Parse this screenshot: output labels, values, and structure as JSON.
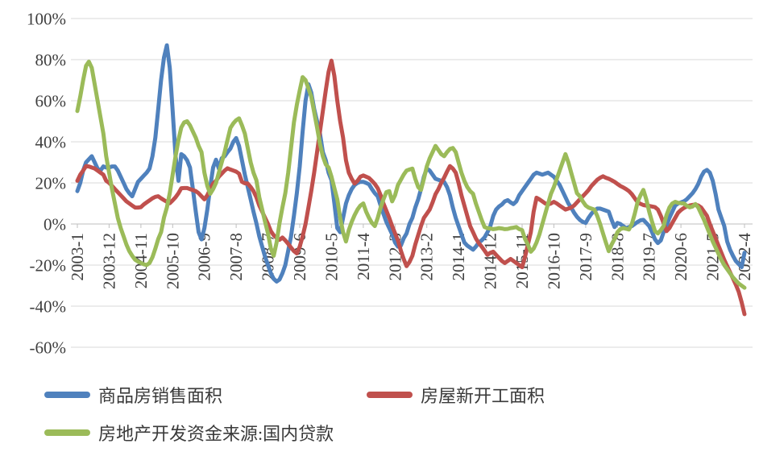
{
  "page": {
    "background": "#ffffff"
  },
  "chart_data": {
    "type": "line",
    "title": "",
    "legend_position": "bottom-left",
    "grid": {
      "show": true,
      "color": "#d9d9d9",
      "axis_color": "#bfbfbf",
      "label_color": "#3f3f3f"
    },
    "x": {
      "unit": "month",
      "start": "2003-1",
      "end": "2022-4",
      "tick_interval_months": 11,
      "tick_labels": [
        "2003-1",
        "2003-12",
        "2004-11",
        "2005-10",
        "2006-9",
        "2007-8",
        "2008-7",
        "2009-6",
        "2010-5",
        "2011-4",
        "2012-3",
        "2013-2",
        "2014-1",
        "2014-12",
        "2015-11",
        "2016-10",
        "2017-9",
        "2018-8",
        "2019-7",
        "2020-6",
        "2021-5",
        "2022-4"
      ]
    },
    "y": {
      "min": -60,
      "max": 100,
      "step": 20,
      "tick_values": [
        100,
        80,
        60,
        40,
        20,
        0,
        -20,
        -40,
        -60
      ],
      "tick_labels": [
        "100%",
        "80%",
        "60%",
        "40%",
        "20%",
        "0%",
        "-20%",
        "-40%",
        "-60%"
      ]
    },
    "series": [
      {
        "name": "商品房销售面积",
        "color": "#4F81BD",
        "values": [
          16,
          20,
          26,
          30,
          31.5,
          33,
          30,
          27,
          26,
          28,
          27.5,
          27.5,
          28,
          28,
          26,
          23,
          20,
          17,
          15,
          13.5,
          17,
          20.5,
          22,
          23.5,
          25,
          27,
          33,
          42,
          56,
          70,
          81,
          87,
          76,
          55,
          33,
          21,
          34,
          33,
          31,
          27.5,
          17,
          6,
          -4,
          -7.5,
          -2,
          7,
          18,
          27.5,
          31.3,
          27,
          32,
          33,
          35,
          36.7,
          40,
          41.8,
          38,
          31,
          24,
          18,
          12,
          6,
          0.4,
          -6,
          -11,
          -16,
          -20,
          -24,
          -26.7,
          -28,
          -27,
          -24,
          -20,
          -13,
          -6,
          4,
          15,
          28,
          45,
          60,
          68,
          64,
          56,
          50,
          44,
          35,
          31,
          25,
          21.3,
          10,
          -2,
          -4,
          3,
          10,
          14,
          17,
          19,
          20,
          20.5,
          20.5,
          20,
          19.3,
          17,
          15,
          13.5,
          9,
          5,
          1,
          -2,
          -5,
          -9,
          -11,
          -10.5,
          -7,
          -4.6,
          0,
          3,
          8,
          12,
          17,
          23,
          27,
          26,
          24,
          22,
          21.5,
          21,
          20.5,
          18,
          14,
          8,
          3,
          -1,
          -5,
          -9,
          -10.5,
          -11.5,
          -12.5,
          -11,
          -9,
          -8,
          -6.5,
          -4,
          -1,
          4,
          7,
          8.5,
          9.5,
          11,
          11.6,
          10.5,
          9.7,
          11,
          14,
          16,
          18,
          20,
          22,
          24,
          25,
          24.5,
          24,
          24.5,
          25,
          24,
          23,
          21,
          19,
          16,
          13,
          10,
          8,
          5.5,
          3.5,
          2,
          1,
          0.5,
          3,
          5,
          6.5,
          7.5,
          7.5,
          7,
          6.5,
          6,
          2,
          -1.5,
          0.5,
          0,
          -1,
          -2,
          -1.5,
          -1,
          0,
          1,
          1.8,
          2,
          0.5,
          -1,
          -4,
          -7.5,
          -9.3,
          -8,
          -4,
          -1,
          3,
          6,
          9,
          10,
          10.5,
          11,
          12,
          13.5,
          15,
          17,
          19.5,
          23,
          25.5,
          26.3,
          25,
          21,
          14.5,
          7,
          3,
          -1,
          -8.5,
          -12.5,
          -15.5,
          -18,
          -19.5,
          -21,
          -14
        ]
      },
      {
        "name": "房屋新开工面积",
        "color": "#C0504D",
        "values": [
          21,
          24,
          26,
          28.2,
          28,
          27.5,
          27,
          26,
          25,
          24,
          21,
          20,
          18.6,
          17,
          15.5,
          14,
          12.5,
          11,
          10,
          9,
          8,
          8,
          8.2,
          9.5,
          10.5,
          11.5,
          12.5,
          13.2,
          13.5,
          12.5,
          11.6,
          10.8,
          10.1,
          11.5,
          13,
          15,
          17.4,
          17.5,
          17.5,
          17,
          16.5,
          16,
          15,
          13.5,
          12,
          14,
          17,
          19.7,
          21,
          23,
          24.5,
          26,
          27.1,
          26.5,
          26,
          25.5,
          24.5,
          20.5,
          19.8,
          19.7,
          18,
          16,
          13,
          9,
          6,
          3,
          0,
          -3.5,
          -5.5,
          -6.8,
          -7.7,
          -6.6,
          -8,
          -9.7,
          -11.5,
          -13.2,
          -14.3,
          -11,
          -6,
          0,
          8,
          16,
          25,
          35,
          45,
          55,
          65,
          74,
          79.5,
          72,
          60,
          50,
          42,
          31,
          25,
          22,
          19.7,
          21,
          23,
          23.6,
          23,
          22.4,
          21,
          19.5,
          17.4,
          14,
          10,
          6.5,
          3,
          -1,
          -4.6,
          -8,
          -13,
          -17,
          -20.5,
          -18.5,
          -15.5,
          -10,
          -5.4,
          -1,
          3,
          5,
          7,
          10.5,
          14.5,
          17,
          20,
          22.5,
          25.5,
          28.2,
          27,
          25,
          20,
          14,
          9,
          4,
          -1,
          -4,
          -7,
          -9.3,
          -11,
          -13,
          -15,
          -14,
          -13.5,
          -15,
          -16.5,
          -18,
          -19,
          -18,
          -17,
          -18,
          -19,
          -20,
          -21,
          -16,
          -10,
          -4,
          6,
          12.8,
          12,
          11,
          10,
          9.5,
          10,
          10.8,
          10,
          9,
          8,
          7,
          7.5,
          8,
          9,
          10.5,
          12,
          13.5,
          15,
          16.5,
          18.5,
          20,
          21.5,
          22.5,
          23.2,
          22.5,
          22,
          21.3,
          20.5,
          19.5,
          18.5,
          17.8,
          17,
          16,
          14.5,
          12.5,
          10.5,
          9.8,
          9.2,
          9,
          8.8,
          8.5,
          8.2,
          7,
          4,
          0.4,
          -3.5,
          -2,
          0.5,
          3,
          5.5,
          6.8,
          7.8,
          8.5,
          9,
          9.3,
          9.5,
          9,
          8,
          6,
          4,
          0,
          -3.5,
          -7,
          -10.5,
          -14,
          -17.5,
          -20.5,
          -23.5,
          -26.5,
          -29.5,
          -33,
          -38,
          -43.9
        ]
      },
      {
        "name": "房地产开发资金来源:国内贷款",
        "color": "#9BBB59",
        "values": [
          55,
          62,
          70,
          77,
          79,
          76,
          68,
          60,
          52,
          44,
          33,
          25,
          17,
          10,
          3,
          -2,
          -6,
          -10,
          -13.2,
          -15.5,
          -17.4,
          -18.3,
          -19,
          -19.6,
          -20,
          -19,
          -16.2,
          -12,
          -7.3,
          -4,
          3.1,
          8,
          15,
          24,
          33,
          41,
          47,
          49.5,
          50,
          48,
          45,
          42,
          38,
          35,
          25,
          18.6,
          14.7,
          17,
          20,
          25,
          30,
          35,
          41,
          46.8,
          49,
          50.5,
          51.4,
          48,
          44,
          37,
          30,
          25,
          21.3,
          13,
          7,
          1,
          -4.6,
          -12,
          -15.5,
          -9,
          0.4,
          8,
          15,
          25,
          37,
          49.5,
          58,
          65,
          71.5,
          70,
          66,
          62,
          54.5,
          47,
          39,
          33,
          29,
          27.5,
          23,
          17.4,
          12,
          3,
          -4,
          -8.5,
          -3,
          1,
          4.3,
          7,
          9,
          10,
          6,
          3,
          0.5,
          -1,
          3,
          8,
          12,
          15.5,
          16,
          11,
          14,
          19,
          21.5,
          24,
          26,
          26.5,
          27,
          22,
          18,
          16.6,
          22,
          28,
          32,
          35,
          38,
          36,
          34,
          33,
          35,
          36.5,
          37,
          35,
          30,
          25,
          21,
          18,
          16,
          14.7,
          10,
          6,
          2,
          -1.5,
          -2,
          -2.2,
          -2.5,
          -2.3,
          -2,
          -2.2,
          -2.5,
          -2.4,
          -2,
          -1.8,
          -1.5,
          -2.5,
          -3,
          -7.3,
          -10,
          -13.5,
          -12,
          -9,
          -5,
          0,
          5,
          10,
          14.7,
          18,
          22,
          26,
          30,
          34,
          30,
          25,
          20,
          15,
          13.5,
          11,
          9,
          8,
          7.5,
          7,
          4,
          0,
          -4.6,
          -9,
          -13.2,
          -10,
          -7.3,
          -4,
          -2.5,
          -2,
          -2.3,
          -2.7,
          0,
          5,
          10.8,
          14,
          16.6,
          12,
          6,
          1,
          -3.5,
          -4.6,
          -3,
          -1,
          4.3,
          8,
          10,
          10.8,
          10.3,
          10.1,
          10,
          8.9,
          8.1,
          8.5,
          9.7,
          8,
          5,
          2,
          -1.5,
          -5,
          -8.5,
          -11.5,
          -14.5,
          -17.5,
          -20,
          -22,
          -24,
          -26,
          -27.5,
          -29,
          -30,
          -31
        ]
      }
    ]
  }
}
